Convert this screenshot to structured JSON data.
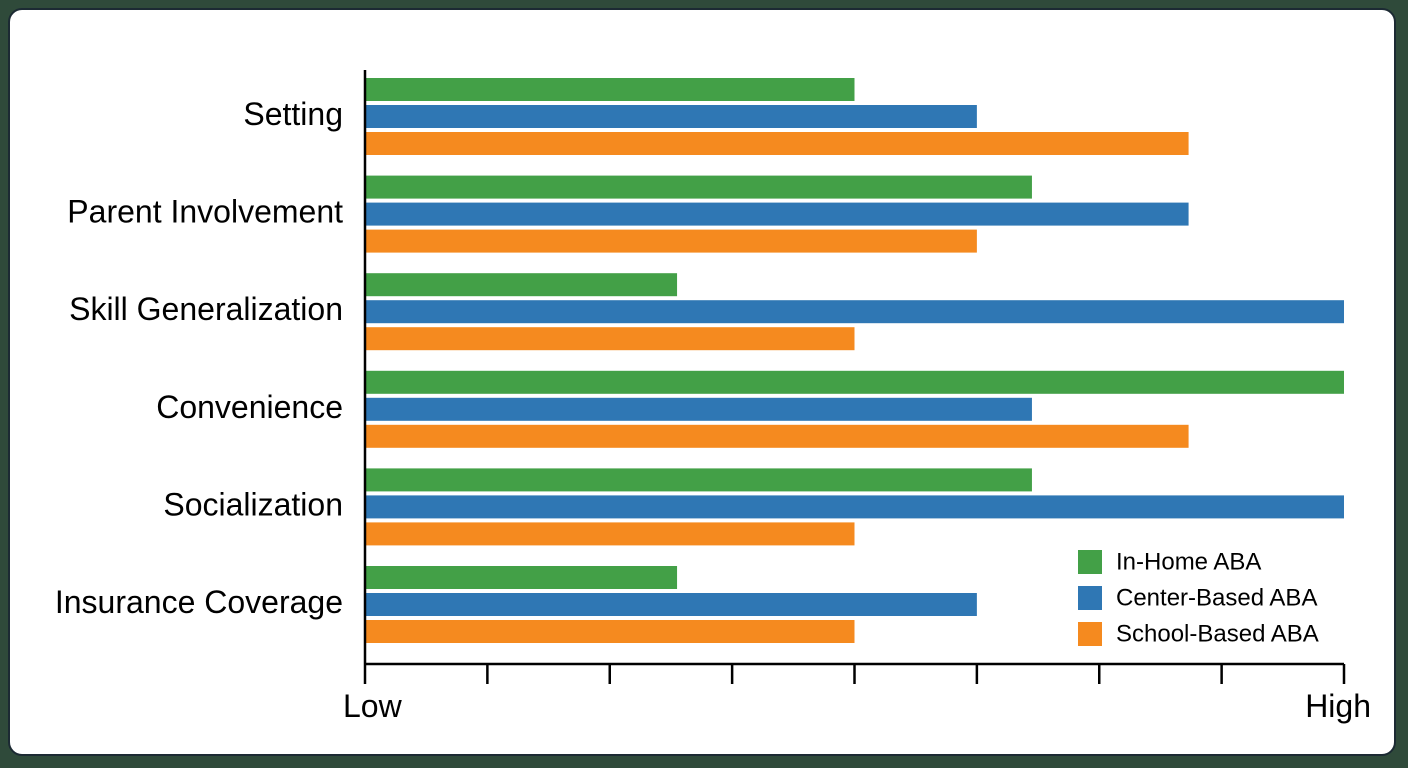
{
  "chart_data": {
    "type": "bar",
    "orientation": "horizontal",
    "categories": [
      "Setting",
      "Parent Involvement",
      "Skill Generalization",
      "Convenience",
      "Socialization",
      "Insurance Coverage"
    ],
    "series": [
      {
        "name": "In-Home ABA",
        "color": "#43a047",
        "values": [
          4,
          5.45,
          2.55,
          8,
          5.45,
          2.55
        ]
      },
      {
        "name": "Center-Based ABA",
        "color": "#2f77b4",
        "values": [
          5,
          6.73,
          8,
          5.45,
          8,
          5
        ]
      },
      {
        "name": "School-Based ABA",
        "color": "#f58a1f",
        "values": [
          6.73,
          5,
          4,
          6.73,
          4,
          4
        ]
      }
    ],
    "xlim": [
      0,
      8
    ],
    "x_tick_count": 9,
    "x_axis_labels": {
      "min": "Low",
      "max": "High"
    },
    "legend_position": "bottom-right",
    "grid": false
  }
}
